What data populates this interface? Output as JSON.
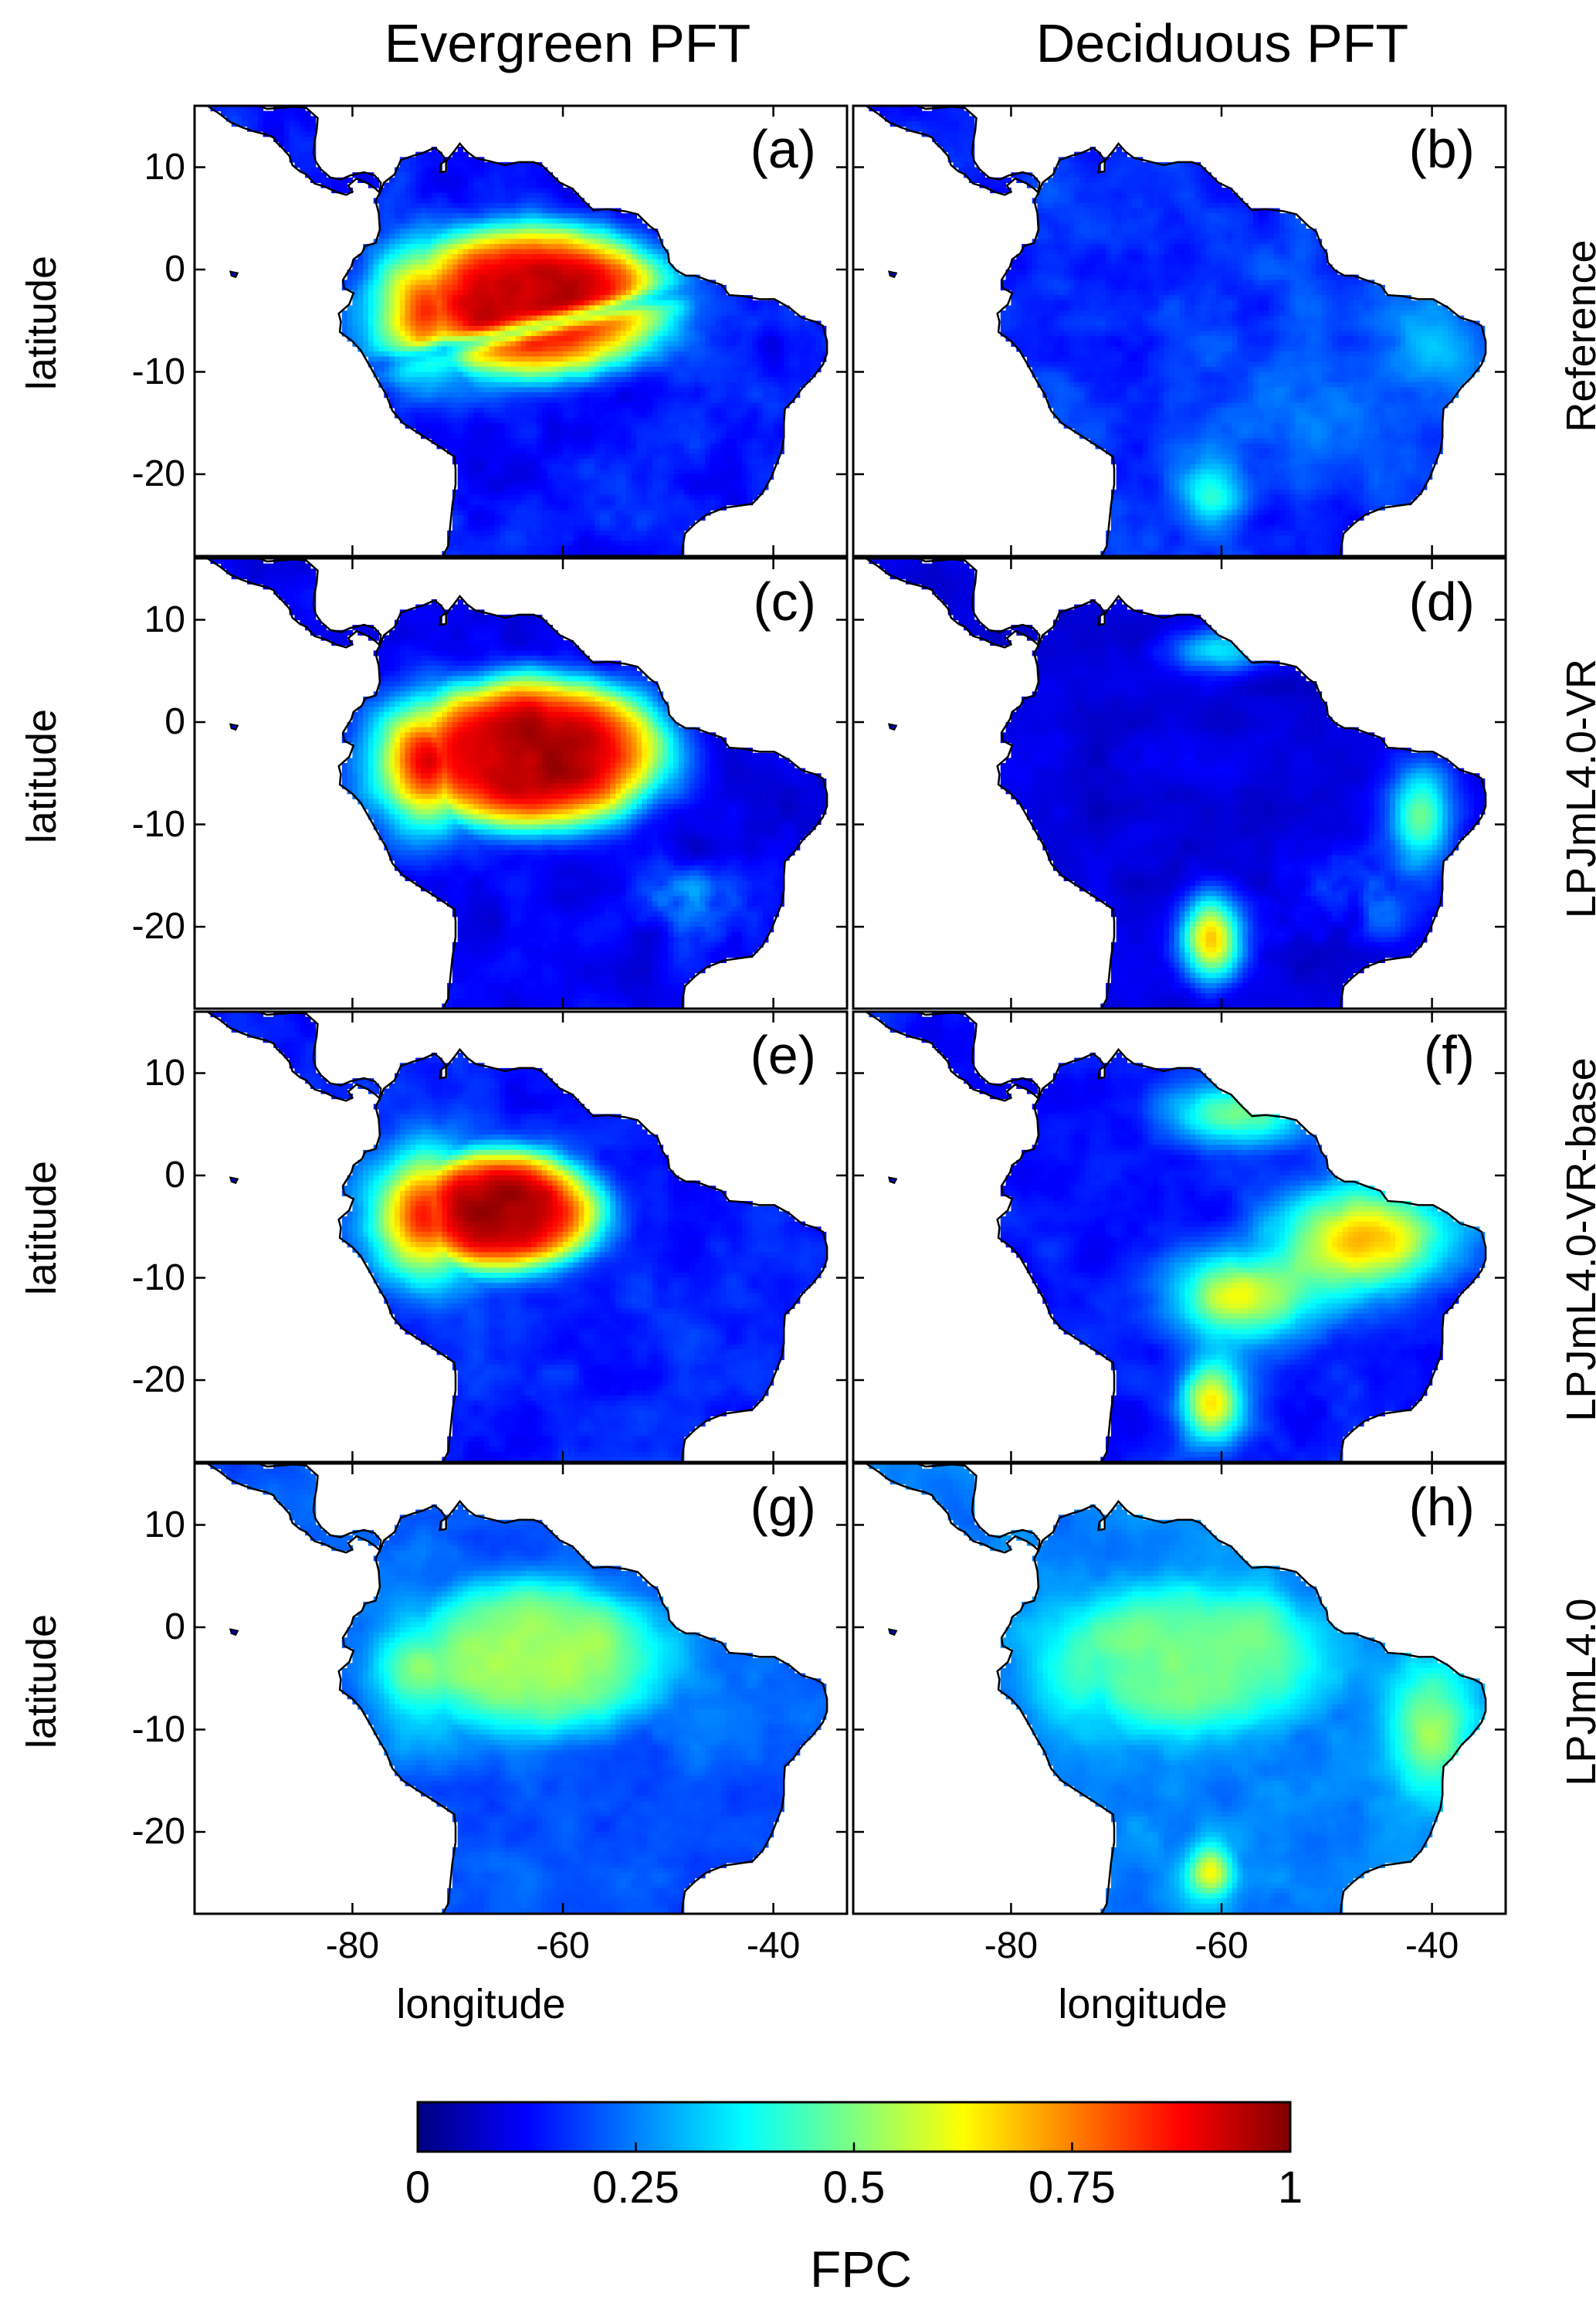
{
  "columns": [
    "Evergreen PFT",
    "Deciduous PFT"
  ],
  "rows": [
    "Reference",
    "LPJmL4.0-VR",
    "LPJmL4.0-VR-base",
    "LPJmL4.0"
  ],
  "panel_letters": [
    "(a)",
    "(b)",
    "(c)",
    "(d)",
    "(e)",
    "(f)",
    "(g)",
    "(h)"
  ],
  "axes": {
    "ylabel": "latitude",
    "xlabel": "longitude",
    "yticks": [
      "10",
      "0",
      "-10",
      "-20"
    ],
    "xticks": [
      "-80",
      "-60",
      "-40"
    ]
  },
  "colorbar": {
    "label": "FPC",
    "ticks": [
      "0",
      "0.25",
      "0.5",
      "0.75",
      "1"
    ],
    "colormap": "jet",
    "range": [
      0,
      1
    ],
    "colors": [
      "#00008f",
      "#0000ff",
      "#0080ff",
      "#00ffff",
      "#80ff80",
      "#ffff00",
      "#ff8000",
      "#ff0000",
      "#800000"
    ]
  },
  "map": {
    "region": "South America",
    "lon_range": [
      -95,
      -33
    ],
    "lat_range": [
      -28,
      16
    ],
    "ocean_color": "#ffffff",
    "coastline_color": "#000000"
  }
}
